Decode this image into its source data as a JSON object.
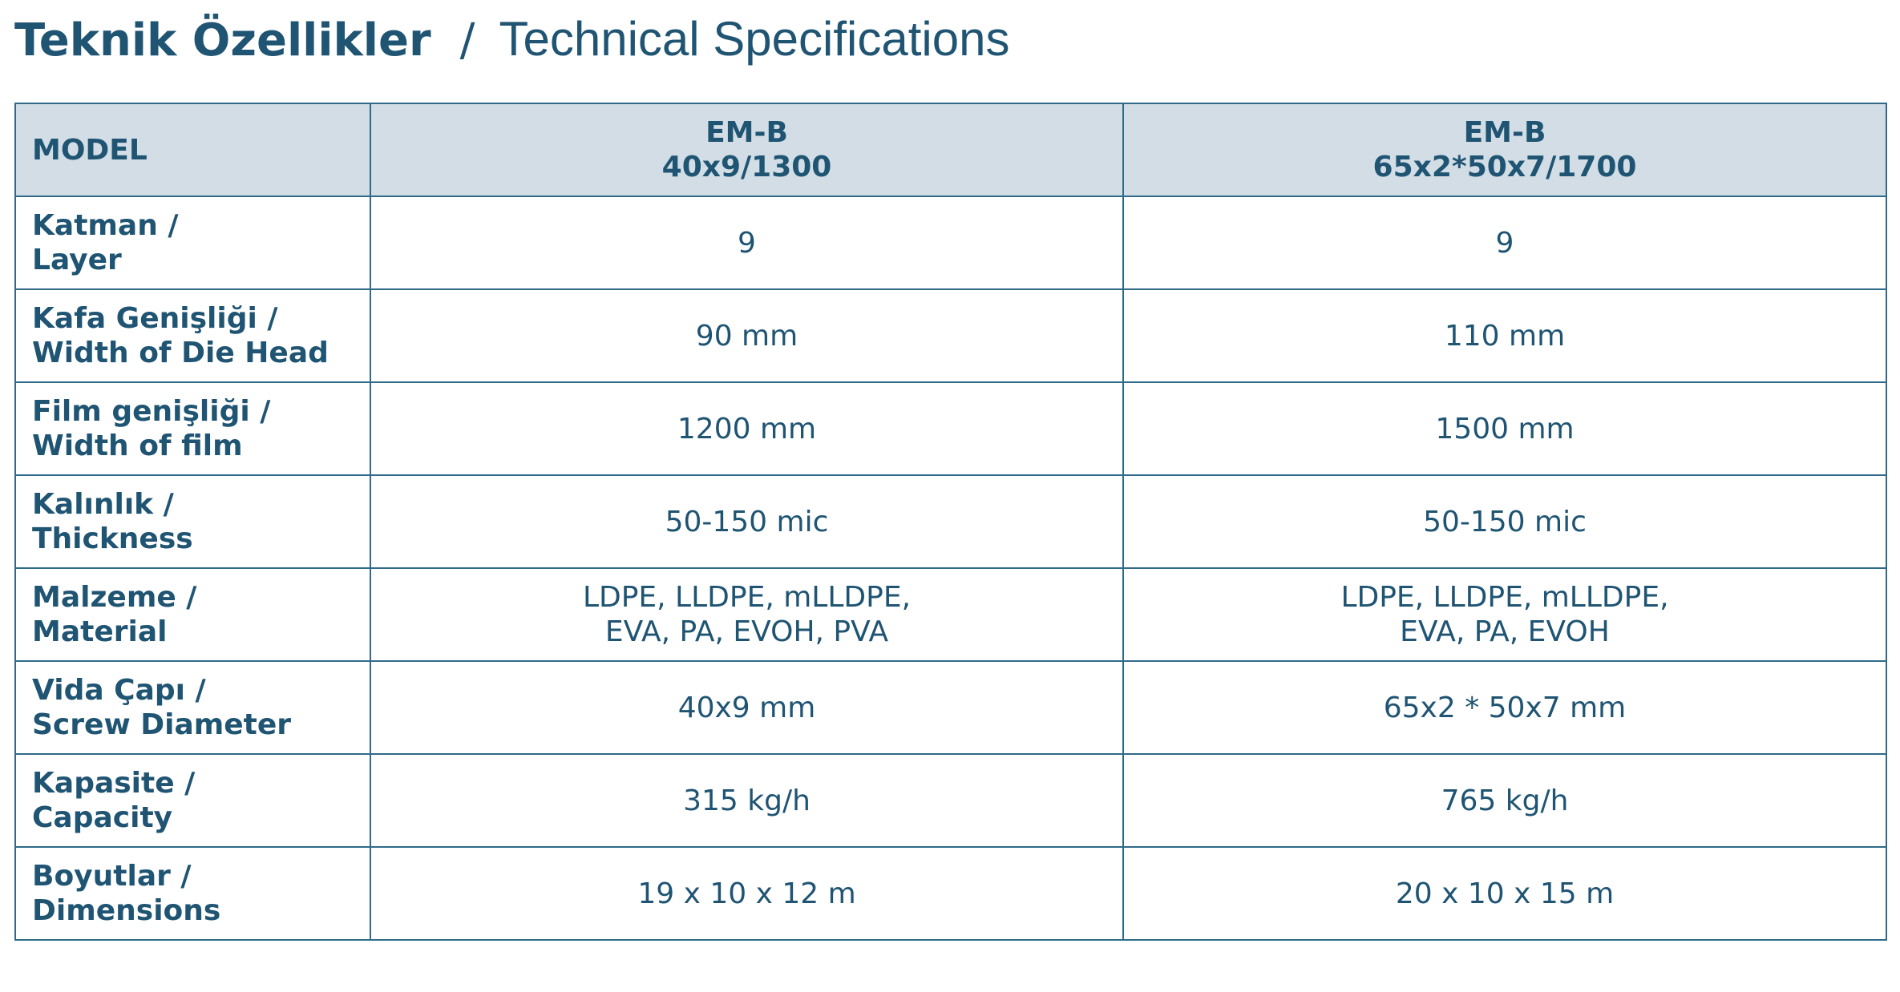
{
  "header": {
    "title_tr": "Teknik Özellikler",
    "separator": "/",
    "title_en": "Technical Specifications"
  },
  "table": {
    "columns": [
      [
        "MODEL"
      ],
      [
        "EM-B",
        "40x9/1300"
      ],
      [
        "EM-B",
        "65x2*50x7/1700"
      ]
    ],
    "rows": [
      [
        [
          "Katman /",
          "Layer"
        ],
        [
          "9"
        ],
        [
          "9"
        ]
      ],
      [
        [
          "Kafa Genişliği /",
          "Width of Die Head"
        ],
        [
          "90 mm"
        ],
        [
          "110 mm"
        ]
      ],
      [
        [
          "Film genişliği /",
          "Width of film"
        ],
        [
          "1200 mm"
        ],
        [
          "1500 mm"
        ]
      ],
      [
        [
          "Kalınlık /",
          "Thickness"
        ],
        [
          "50-150 mic"
        ],
        [
          "50-150 mic"
        ]
      ],
      [
        [
          "Malzeme /",
          "Material"
        ],
        [
          "LDPE, LLDPE, mLLDPE,",
          "EVA, PA, EVOH, PVA"
        ],
        [
          "LDPE, LLDPE, mLLDPE,",
          "EVA, PA, EVOH"
        ]
      ],
      [
        [
          "Vida Çapı /",
          "Screw Diameter"
        ],
        [
          "40x9 mm"
        ],
        [
          "65x2 * 50x7 mm"
        ]
      ],
      [
        [
          "Kapasite /",
          "Capacity"
        ],
        [
          "315 kg/h"
        ],
        [
          "765 kg/h"
        ]
      ],
      [
        [
          "Boyutlar /",
          "Dimensions"
        ],
        [
          "19 x 10 x 12 m"
        ],
        [
          "20 x 10 x 15 m"
        ]
      ]
    ]
  }
}
